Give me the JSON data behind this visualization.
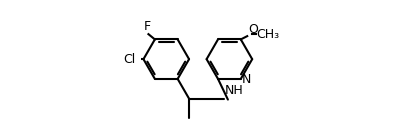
{
  "bg": "#ffffff",
  "lc": "#000000",
  "lw": 1.5,
  "fs": 9.0,
  "r": 0.195,
  "figsize": [
    3.98,
    1.3
  ],
  "dpi": 100,
  "xlim": [
    0.0,
    1.0
  ],
  "ylim": [
    -0.05,
    1.05
  ],
  "lcx": 0.22,
  "lcy": 0.55,
  "rcx": 0.76,
  "rcy": 0.55,
  "doff": 0.018,
  "shrink": 0.035
}
